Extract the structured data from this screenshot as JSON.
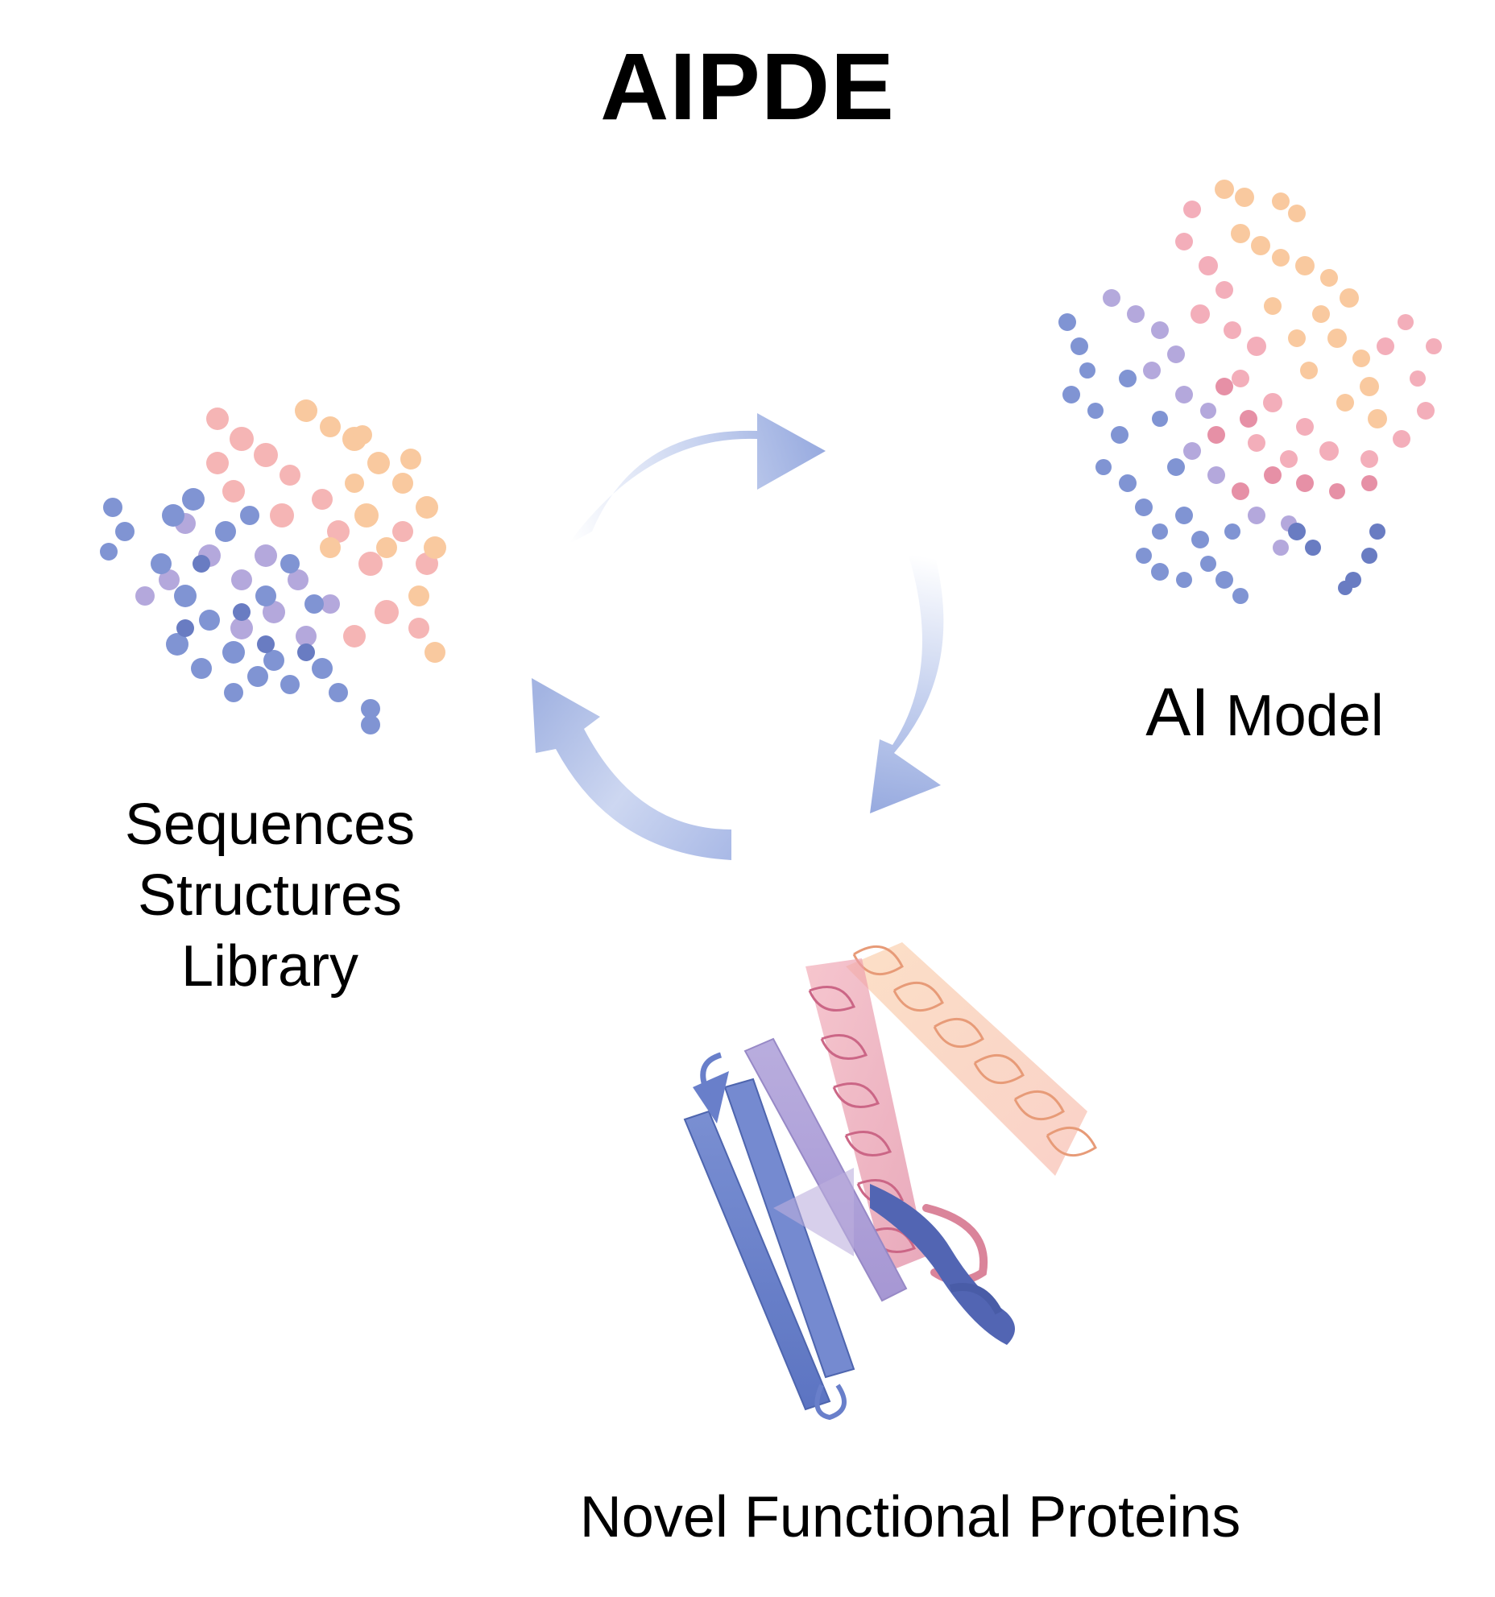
{
  "diagram": {
    "title": "AIPDE",
    "nodes": [
      {
        "id": "library",
        "lines": [
          "Sequences",
          "Structures",
          "Library"
        ],
        "visual": "point-cloud"
      },
      {
        "id": "ai-model",
        "prefix": "AI",
        "suffix": "Model",
        "visual": "point-cloud"
      },
      {
        "id": "proteins",
        "label": "Novel Functional Proteins",
        "visual": "ribbon-structure"
      }
    ],
    "cycle_arrows": [
      {
        "from": "library",
        "to": "ai-model"
      },
      {
        "from": "ai-model",
        "to": "proteins"
      },
      {
        "from": "proteins",
        "to": "library"
      }
    ],
    "colors": {
      "arrow": "#9fb2e0",
      "blue": "#5a74c4",
      "lavender": "#a79ad6",
      "pink": "#e5849c",
      "peach": "#f9b788"
    }
  }
}
